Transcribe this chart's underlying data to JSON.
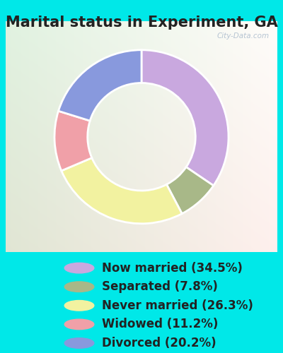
{
  "title": "Marital status in Experiment, GA",
  "slices": [
    {
      "label": "Now married (34.5%)",
      "value": 34.5,
      "color": "#c9a8df"
    },
    {
      "label": "Separated (7.8%)",
      "value": 7.8,
      "color": "#a8b888"
    },
    {
      "label": "Never married (26.3%)",
      "value": 26.3,
      "color": "#f2f2a0"
    },
    {
      "label": "Widowed (11.2%)",
      "value": 11.2,
      "color": "#f0a0a8"
    },
    {
      "label": "Divorced (20.2%)",
      "value": 20.2,
      "color": "#8899dd"
    }
  ],
  "background_color": "#00e8e8",
  "watermark": "City-Data.com",
  "donut_width": 0.38,
  "title_fontsize": 15,
  "legend_fontsize": 12,
  "start_angle": 90
}
